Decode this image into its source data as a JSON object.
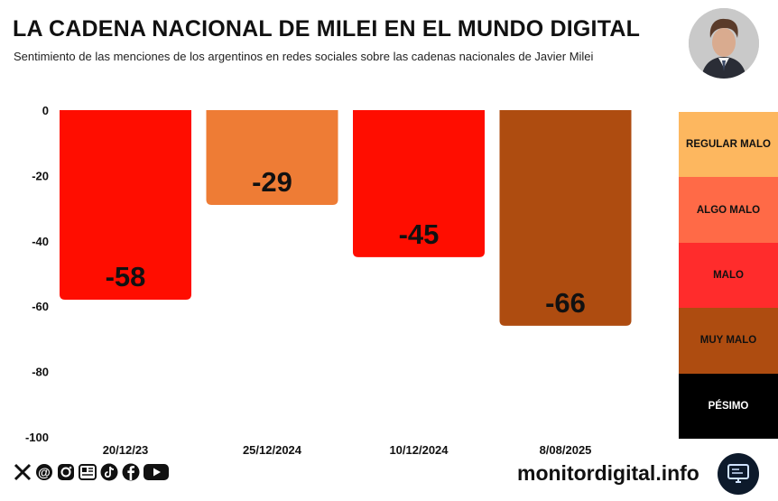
{
  "header": {
    "title": "LA CADENA NACIONAL DE MILEI EN EL MUNDO DIGITAL",
    "subtitle": "Sentimiento de las menciones de los argentinos en redes sociales sobre las cadenas nacionales de Javier Milei"
  },
  "chart_data": {
    "type": "bar",
    "categories": [
      "20/12/23",
      "25/12/2024",
      "10/12/2024",
      "8/08/2025"
    ],
    "values": [
      -58,
      -29,
      -45,
      -66
    ],
    "data_labels": [
      "-58",
      "-29",
      "-45",
      "-66"
    ],
    "bar_colors": [
      "#ff0d00",
      "#ee7c35",
      "#ff0d00",
      "#ae4c10"
    ],
    "ylim": [
      -100,
      0
    ],
    "yticks": [
      0,
      -20,
      -40,
      -60,
      -80,
      -100
    ],
    "ytick_labels": [
      "0",
      "-20",
      "-40",
      "-60",
      "-80",
      "-100"
    ],
    "grid": false,
    "legend_position": "right",
    "legend": [
      {
        "label": "REGULAR MALO",
        "color": "#fdb75f",
        "text_color": "#111111"
      },
      {
        "label": "ALGO MALO",
        "color": "#ff6a47",
        "text_color": "#111111"
      },
      {
        "label": "MALO",
        "color": "#ff2c2c",
        "text_color": "#111111"
      },
      {
        "label": "MUY MALO",
        "color": "#ae4c10",
        "text_color": "#111111"
      },
      {
        "label": "PÉSIMO",
        "color": "#000000",
        "text_color": "#ffffff"
      }
    ]
  },
  "footer": {
    "icons": [
      "x-icon",
      "threads-icon",
      "instagram-icon",
      "news-icon",
      "tiktok-icon",
      "facebook-icon",
      "youtube-icon"
    ],
    "site": "monitordigital.info"
  }
}
